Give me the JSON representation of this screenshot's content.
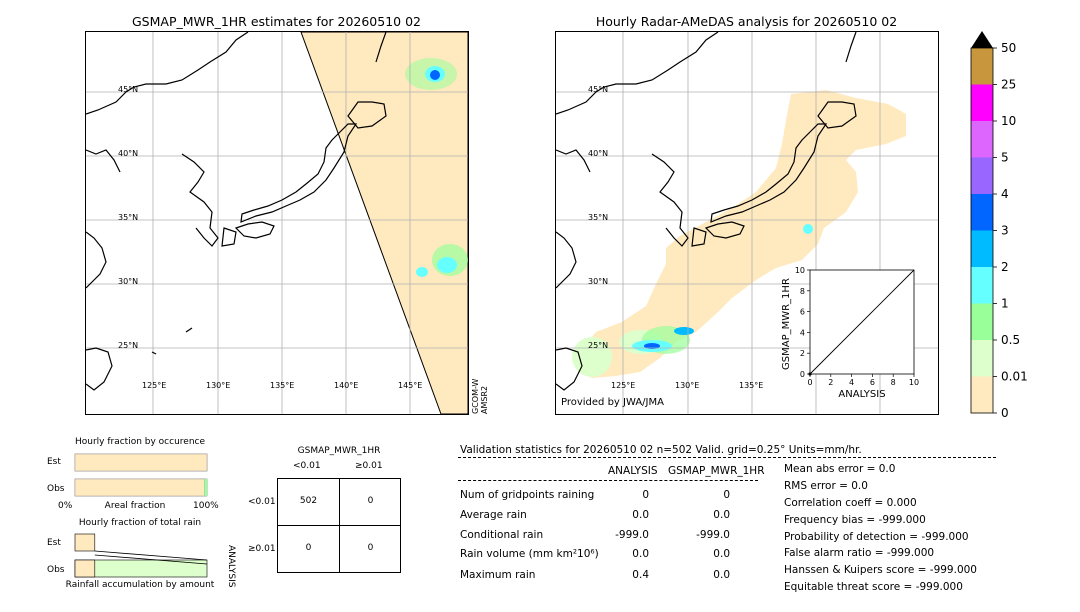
{
  "left_map": {
    "title": "GSMAP_MWR_1HR estimates for 20260510 02",
    "lat_labels": [
      "45°N",
      "40°N",
      "35°N",
      "30°N",
      "25°N"
    ],
    "lon_labels": [
      "125°E",
      "130°E",
      "135°E",
      "140°E",
      "145°E"
    ],
    "satellite_line1": "GCOM-W",
    "satellite_line2": "AMSR2"
  },
  "right_map": {
    "title": "Hourly Radar-AMeDAS analysis for 20260510 02",
    "lat_labels": [
      "45°N",
      "40°N",
      "35°N",
      "30°N",
      "25°N"
    ],
    "lon_labels": [
      "125°E",
      "130°E",
      "135°E"
    ],
    "credit": "Provided by JWA/JMA"
  },
  "colorbar": {
    "labels": [
      "50",
      "25",
      "10",
      "5",
      "4",
      "3",
      "2",
      "1",
      "0.5",
      "0.01",
      "0"
    ],
    "colors": [
      "#c8963c",
      "#ff00ff",
      "#dd66ff",
      "#9966ff",
      "#0066ff",
      "#00bbff",
      "#66ffff",
      "#99ff99",
      "#ddffcc",
      "#ffe9bf"
    ]
  },
  "chart_data": [
    {
      "type": "scatter",
      "title": "",
      "xlabel": "ANALYSIS",
      "ylabel": "GSMAP_MWR_1HR",
      "xlim": [
        0,
        10
      ],
      "ylim": [
        0,
        10
      ],
      "xticks": [
        "0",
        "2",
        "4",
        "6",
        "8",
        "10"
      ],
      "yticks": [
        "0",
        "2",
        "4",
        "6",
        "8",
        "10"
      ],
      "points": [
        {
          "x": 0.0,
          "y": 0.0
        }
      ],
      "diagonal": true
    },
    {
      "type": "bar",
      "title": "Hourly fraction by occurence",
      "categories": [
        "Est",
        "Obs"
      ],
      "values_percent": [
        100,
        98
      ],
      "xlabel": "Areal fraction",
      "x_left": "0%",
      "x_right": "100%"
    },
    {
      "type": "bar",
      "title": "Hourly fraction of total rain",
      "categories": [
        "Est",
        "Obs"
      ],
      "values_percent": [
        15,
        100
      ],
      "xlabel": "Rainfall accumulation by amount"
    },
    {
      "type": "table",
      "title": "GSMAP_MWR_1HR",
      "col_headers": [
        "<0.01",
        "≥0.01"
      ],
      "row_headers": [
        "<0.01",
        "≥0.01"
      ],
      "row_axis_label": "ANALYSIS",
      "cells": [
        [
          "502",
          "0"
        ],
        [
          "0",
          "0"
        ]
      ]
    }
  ],
  "validation": {
    "header": "Validation statistics for 20260510 02  n=502 Valid. grid=0.25° Units=mm/hr.",
    "col_analysis": "ANALYSIS",
    "col_gsmap": "GSMAP_MWR_1HR",
    "rows": [
      {
        "label": "Num of gridpoints raining",
        "analysis": "0",
        "gsmap": "0"
      },
      {
        "label": "Average rain",
        "analysis": "0.0",
        "gsmap": "0.0"
      },
      {
        "label": "Conditional rain",
        "analysis": "-999.0",
        "gsmap": "-999.0"
      },
      {
        "label": "Rain volume (mm km²10⁶)",
        "analysis": "0.0",
        "gsmap": "0.0"
      },
      {
        "label": "Maximum rain",
        "analysis": "0.4",
        "gsmap": "0.0"
      }
    ],
    "scores": [
      "Mean abs error =    0.0",
      "RMS error =    0.0",
      "Correlation coeff =  0.000",
      "Frequency bias = -999.000",
      "Probability of detection = -999.000",
      "False alarm ratio = -999.000",
      "Hanssen & Kuipers score = -999.000",
      "Equitable threat score = -999.000"
    ]
  }
}
